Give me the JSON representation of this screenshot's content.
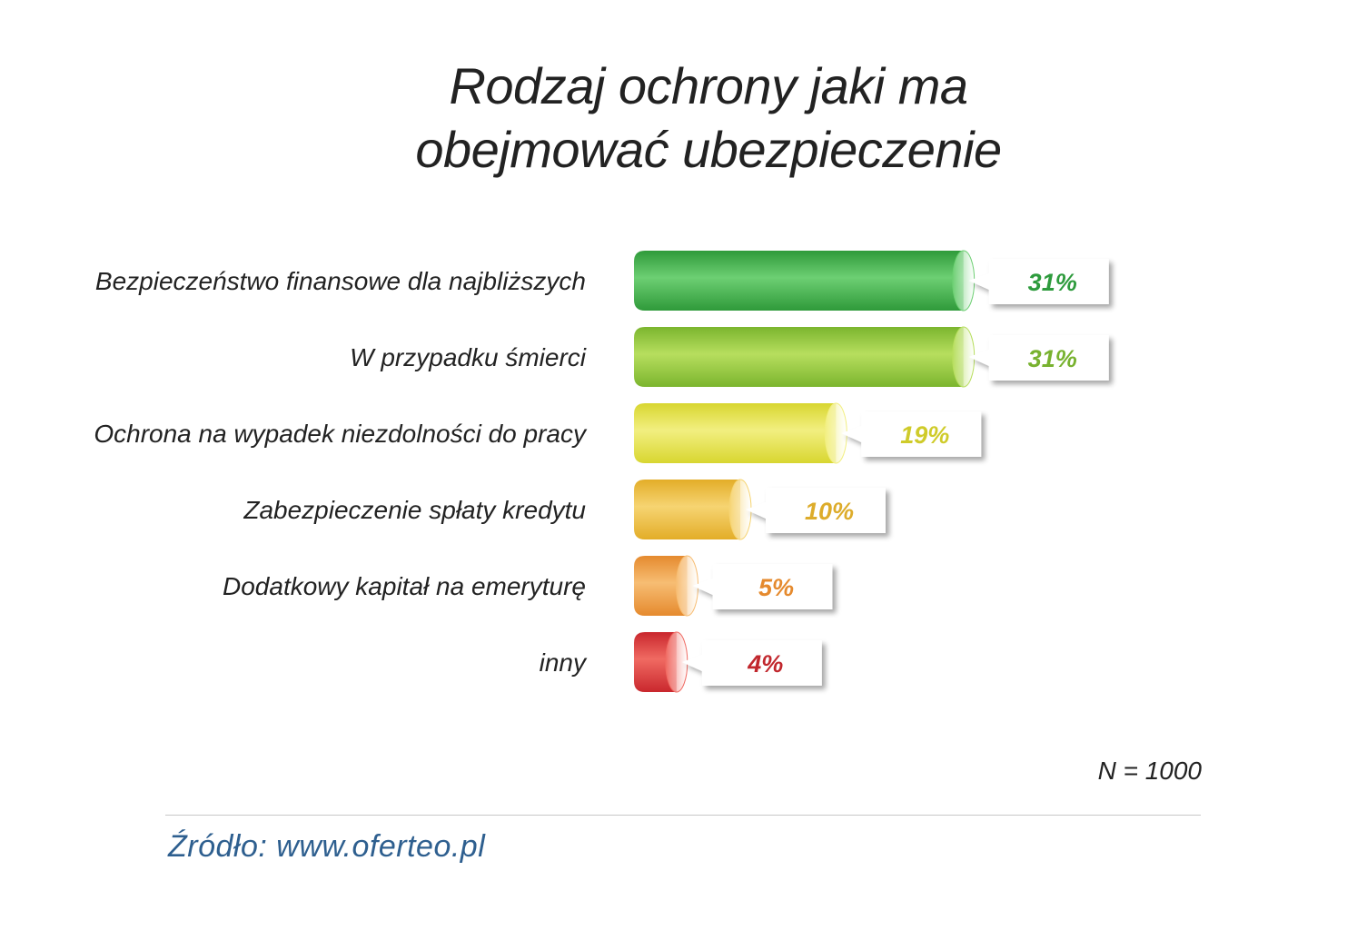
{
  "title_line1": "Rodzaj ochrony jaki ma",
  "title_line2": "obejmować ubezpieczenie",
  "sample_size": "N = 1000",
  "source": "Źródło: www.oferteo.pl",
  "chart_data": {
    "type": "bar",
    "orientation": "horizontal",
    "title": "Rodzaj ochrony jaki ma obejmować ubezpieczenie",
    "categories": [
      "Bezpieczeństwo finansowe dla najbliższych",
      "W przypadku śmierci",
      "Ochrona na wypadek niezdolności do pracy",
      "Zabezpieczenie spłaty kredytu",
      "Dodatkowy kapitał na emeryturę",
      "inny"
    ],
    "values": [
      31,
      31,
      19,
      10,
      5,
      4
    ],
    "value_labels": [
      "31%",
      "31%",
      "19%",
      "10%",
      "5%",
      "4%"
    ],
    "colors": [
      "#2f9a3a",
      "#7bb52e",
      "#d8d630",
      "#e3ad28",
      "#e58a2e",
      "#c9272d"
    ],
    "light_colors": [
      "#6dcf73",
      "#b7de5e",
      "#f2ef80",
      "#f6d472",
      "#f7bd73",
      "#f06a62"
    ],
    "label_colors": [
      "#2e9b3d",
      "#78b22f",
      "#cfcb2a",
      "#ddac2b",
      "#e58a2e",
      "#c1272d"
    ],
    "grid": false,
    "legend": "none"
  }
}
